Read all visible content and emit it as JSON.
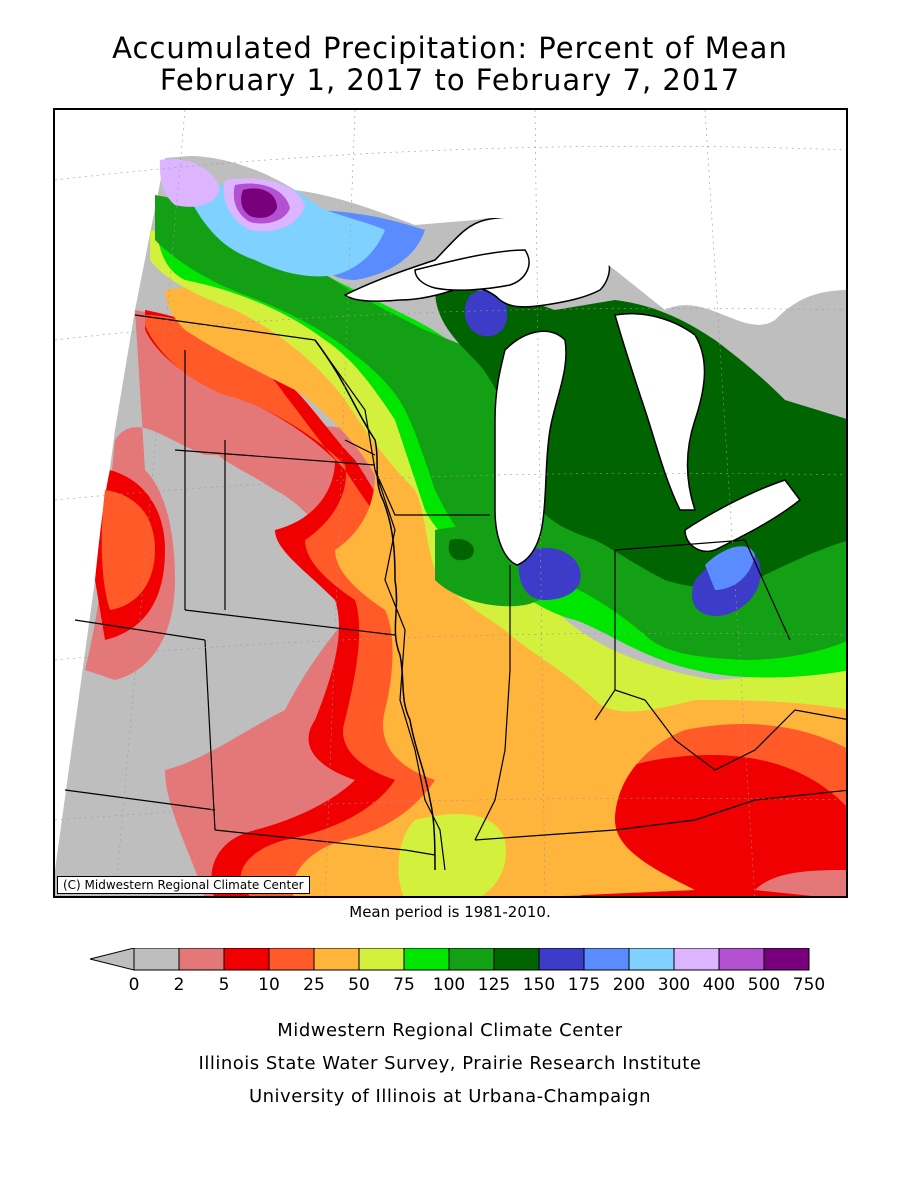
{
  "title": {
    "line1": "Accumulated Precipitation: Percent of Mean",
    "line2": "February 1, 2017 to February 7, 2017"
  },
  "map": {
    "copyright": "(C) Midwestern Regional Climate Center",
    "water_color": "#ffffff",
    "colors": {
      "c0": "#bebebe",
      "c2": "#e47878",
      "c5": "#f00000",
      "c10": "#ff5a28",
      "c25": "#ffb43c",
      "c50": "#d2f03c",
      "c75": "#00e600",
      "c100": "#14a014",
      "c125": "#006400",
      "c150": "#3c3cc8",
      "c175": "#5a8cff",
      "c200": "#7fd2ff",
      "c300": "#ddb4ff",
      "c400": "#b450d2",
      "c500": "#78007d"
    }
  },
  "mean_period": "Mean period is 1981-2010.",
  "legend": {
    "labels": [
      "0",
      "2",
      "5",
      "10",
      "25",
      "50",
      "75",
      "100",
      "125",
      "150",
      "175",
      "200",
      "300",
      "400",
      "500",
      "750"
    ],
    "colors": [
      "#bebebe",
      "#e47878",
      "#f00000",
      "#ff5a28",
      "#ffb43c",
      "#d2f03c",
      "#00e600",
      "#14a014",
      "#006400",
      "#3c3cc8",
      "#5a8cff",
      "#7fd2ff",
      "#ddb4ff",
      "#b450d2",
      "#78007d"
    ]
  },
  "credits": {
    "line1": "Midwestern Regional Climate Center",
    "line2": "Illinois State Water Survey, Prairie Research Institute",
    "line3": "University of Illinois at Urbana-Champaign"
  }
}
